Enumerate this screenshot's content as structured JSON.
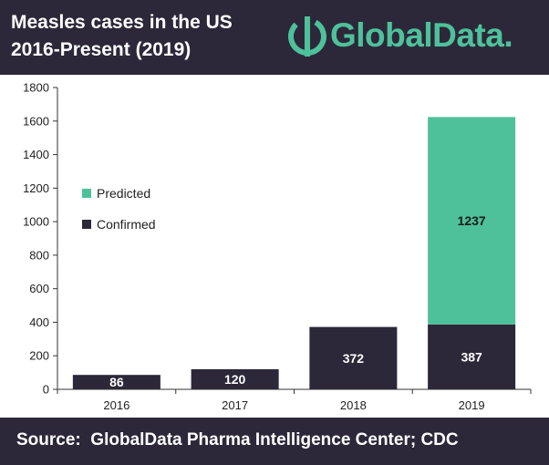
{
  "header": {
    "title_line1": "Measles cases in the US",
    "title_line2": "2016-Present (2019)",
    "logo_text": "GlobalData."
  },
  "footer": {
    "source": "Source:  GlobalData Pharma Intelligence Center; CDC"
  },
  "colors": {
    "confirmed": "#2c2839",
    "predicted": "#4ec19b",
    "header_bg": "#2c2839"
  },
  "chart_data": {
    "type": "bar",
    "stacked": true,
    "categories": [
      "2016",
      "2017",
      "2018",
      "2019"
    ],
    "series": [
      {
        "name": "Confirmed",
        "values": [
          86,
          120,
          372,
          387
        ],
        "labels": [
          "86",
          "120",
          "372",
          "387"
        ]
      },
      {
        "name": "Predicted",
        "values": [
          0,
          0,
          0,
          1237
        ],
        "labels": [
          "",
          "",
          "",
          "1237"
        ]
      }
    ],
    "ylim": [
      0,
      1800
    ],
    "yticks": [
      0,
      200,
      400,
      600,
      800,
      1000,
      1200,
      1400,
      1600,
      1800
    ],
    "legend": [
      "Predicted",
      "Confirmed"
    ],
    "legend_position": "left",
    "grid": false
  }
}
